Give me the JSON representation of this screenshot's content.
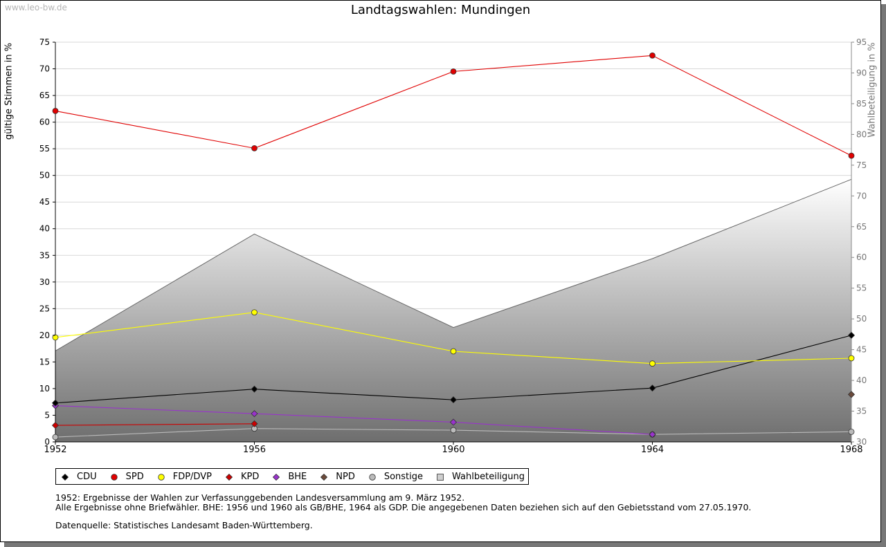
{
  "watermark": "www.leo-bw.de",
  "chart_data": {
    "type": "line",
    "title": "Landtagswahlen: Mundingen",
    "ylabel": "gültige Stimmen in %",
    "y2label": "Wahlbeteiligung in %",
    "x": [
      "1952",
      "1956",
      "1960",
      "1964",
      "1968"
    ],
    "ylim": [
      0,
      75
    ],
    "yticks": [
      0,
      5,
      10,
      15,
      20,
      25,
      30,
      35,
      40,
      45,
      50,
      55,
      60,
      65,
      70,
      75
    ],
    "y2lim": [
      30,
      95
    ],
    "y2ticks": [
      30,
      35,
      40,
      45,
      50,
      55,
      60,
      65,
      70,
      75,
      80,
      85,
      90,
      95
    ],
    "grid": true,
    "legend_position": "bottom-left",
    "series": [
      {
        "name": "CDU",
        "color": "#000000",
        "marker": "diamond",
        "axis": "left",
        "values": [
          7.3,
          9.9,
          7.9,
          10.1,
          20.0
        ]
      },
      {
        "name": "SPD",
        "color": "#e00000",
        "marker": "circle",
        "axis": "left",
        "values": [
          62.1,
          55.1,
          69.5,
          72.5,
          53.7
        ]
      },
      {
        "name": "FDP/DVP",
        "color": "#ffff00",
        "marker": "circle",
        "axis": "left",
        "values": [
          19.6,
          24.3,
          17.0,
          14.7,
          15.7
        ]
      },
      {
        "name": "KPD",
        "color": "#cc0000",
        "marker": "diamond",
        "axis": "left",
        "values": [
          3.1,
          3.4,
          null,
          null,
          null
        ]
      },
      {
        "name": "BHE",
        "color": "#9933cc",
        "marker": "diamond",
        "axis": "left",
        "values": [
          6.8,
          5.3,
          3.7,
          1.4,
          null
        ]
      },
      {
        "name": "NPD",
        "color": "#6b4a3a",
        "marker": "diamond",
        "axis": "left",
        "values": [
          null,
          null,
          null,
          null,
          8.9
        ]
      },
      {
        "name": "Sonstige",
        "color": "#bbbbbb",
        "marker": "circle",
        "axis": "left",
        "values": [
          0.9,
          2.5,
          2.2,
          1.4,
          1.9
        ]
      },
      {
        "name": "Wahlbeteiligung",
        "color": "#999999",
        "marker": "square",
        "axis": "right",
        "type": "area",
        "values": [
          44.8,
          63.8,
          48.6,
          59.8,
          72.7
        ]
      }
    ]
  },
  "notes": {
    "line1": "1952: Ergebnisse der Wahlen zur Verfassunggebenden Landesversammlung am 9. März 1952.",
    "line2": "Alle Ergebnisse ohne Briefwähler. BHE: 1956 und 1960 als GB/BHE, 1964 als GDP. Die angegebenen Daten beziehen sich auf den Gebietsstand vom 27.05.1970.",
    "source": "Datenquelle: Statistisches Landesamt Baden-Württemberg."
  }
}
